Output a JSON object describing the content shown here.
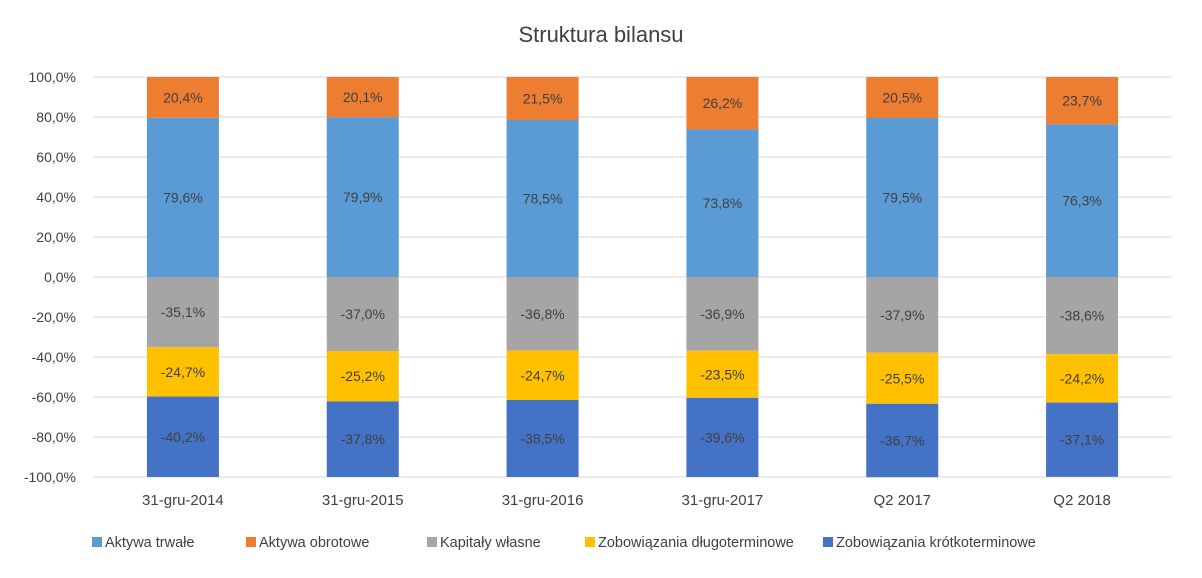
{
  "chart_data": {
    "type": "bar",
    "stacked": true,
    "title": "Struktura bilansu",
    "xlabel": "",
    "ylabel": "",
    "ylim": [
      -100,
      100
    ],
    "y_ticks": [
      100,
      80,
      60,
      40,
      20,
      0,
      -20,
      -40,
      -60,
      -80,
      -100
    ],
    "y_tick_labels": [
      "100,0%",
      "80,0%",
      "60,0%",
      "40,0%",
      "20,0%",
      "0,0%",
      "-20,0%",
      "-40,0%",
      "-60,0%",
      "-80,0%",
      "-100,0%"
    ],
    "grid": true,
    "legend_position": "bottom",
    "categories": [
      "31-gru-2014",
      "31-gru-2015",
      "31-gru-2016",
      "31-gru-2017",
      "Q2 2017",
      "Q2 2018"
    ],
    "series": [
      {
        "name": "Aktywa trwałe",
        "color": "#5B9BD5",
        "values": [
          79.6,
          79.9,
          78.5,
          73.8,
          79.5,
          76.3
        ],
        "labels": [
          "79,6%",
          "79,9%",
          "78,5%",
          "73,8%",
          "79,5%",
          "76,3%"
        ]
      },
      {
        "name": "Aktywa obrotowe",
        "color": "#ED7D31",
        "values": [
          20.4,
          20.1,
          21.5,
          26.2,
          20.5,
          23.7
        ],
        "labels": [
          "20,4%",
          "20,1%",
          "21,5%",
          "26,2%",
          "20,5%",
          "23,7%"
        ]
      },
      {
        "name": "Kapitały własne",
        "color": "#A5A5A5",
        "values": [
          -35.1,
          -37.0,
          -36.8,
          -36.9,
          -37.9,
          -38.6
        ],
        "labels": [
          "-35,1%",
          "-37,0%",
          "-36,8%",
          "-36,9%",
          "-37,9%",
          "-38,6%"
        ]
      },
      {
        "name": "Zobowiązania długoterminowe",
        "color": "#FFC000",
        "values": [
          -24.7,
          -25.2,
          -24.7,
          -23.5,
          -25.5,
          -24.2
        ],
        "labels": [
          "-24,7%",
          "-25,2%",
          "-24,7%",
          "-23,5%",
          "-25,5%",
          "-24,2%"
        ]
      },
      {
        "name": "Zobowiązania krótkoterminowe",
        "color": "#4472C4",
        "values": [
          -40.2,
          -37.8,
          -38.5,
          -39.6,
          -36.7,
          -37.1
        ],
        "labels": [
          "-40,2%",
          "-37,8%",
          "-38,5%",
          "-39,6%",
          "-36,7%",
          "-37,1%"
        ]
      }
    ]
  }
}
